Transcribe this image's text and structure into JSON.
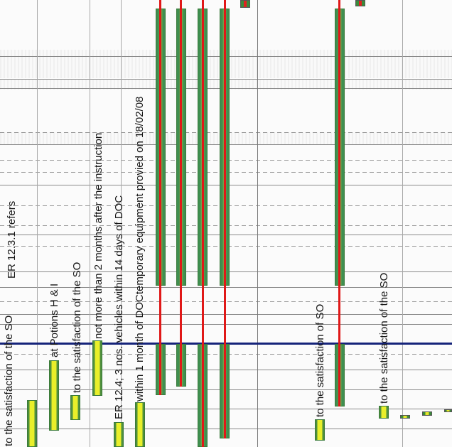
{
  "annotations": {
    "n1": "to the satisfaction of the SO",
    "n2": "ER 12.3.1 refers",
    "n3": "at Potions H & I",
    "n4": "to the satisfaction of the SO",
    "n5": "not more than 2 months after the instruction",
    "n6": "ER 12.4; 3 nos. vehicles within 14 days of DOC",
    "n7": "within 1 month of DOCtemporary equipment provied on 18/02/08",
    "n8": "to the satisfaction of SO",
    "n9": "to the satisfaction of the SO"
  },
  "colors": {
    "today_line": "#15237a",
    "bar_yellow": "#e9ef2a",
    "bar_green": "#4e8f3e",
    "critical_red": "#e01818"
  }
}
